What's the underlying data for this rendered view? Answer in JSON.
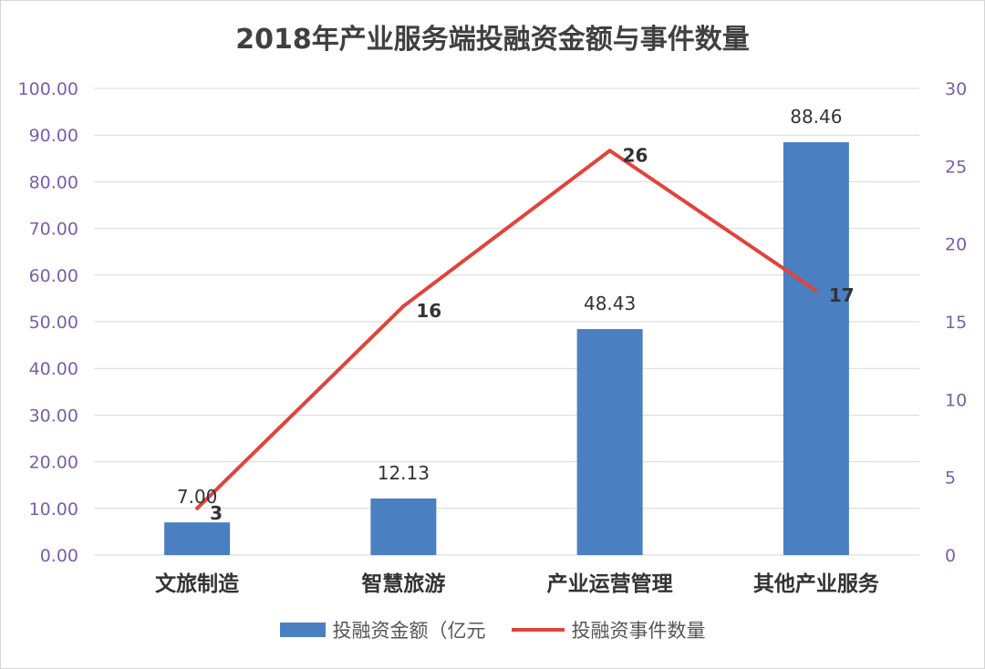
{
  "chart_data": {
    "type": "bar+line",
    "title": "2018年产业服务端投融资金额与事件数量",
    "categories": [
      "文旅制造",
      "智慧旅游",
      "产业运营管理",
      "其他产业服务"
    ],
    "series": [
      {
        "name": "投融资金额（亿元",
        "type": "bar",
        "axis": "left",
        "values": [
          7.0,
          12.13,
          48.43,
          88.46
        ],
        "labels": [
          "7.00",
          "12.13",
          "48.43",
          "88.46"
        ],
        "color": "#4a7fc1"
      },
      {
        "name": "投融资事件数量",
        "type": "line",
        "axis": "right",
        "values": [
          3,
          16,
          26,
          17
        ],
        "labels": [
          "3",
          "16",
          "26",
          "17"
        ],
        "color": "#e0443b"
      }
    ],
    "y_left": {
      "ylim": [
        0,
        100
      ],
      "ticks": [
        "0.00",
        "10.00",
        "20.00",
        "30.00",
        "40.00",
        "50.00",
        "60.00",
        "70.00",
        "80.00",
        "90.00",
        "100.00"
      ]
    },
    "y_right": {
      "ylim": [
        0,
        30
      ],
      "ticks": [
        "0",
        "5",
        "10",
        "15",
        "20",
        "25",
        "30"
      ]
    },
    "grid": true,
    "legend_position": "bottom",
    "tick_color": "#7b5ea7",
    "grid_color": "#d9d9d9"
  }
}
